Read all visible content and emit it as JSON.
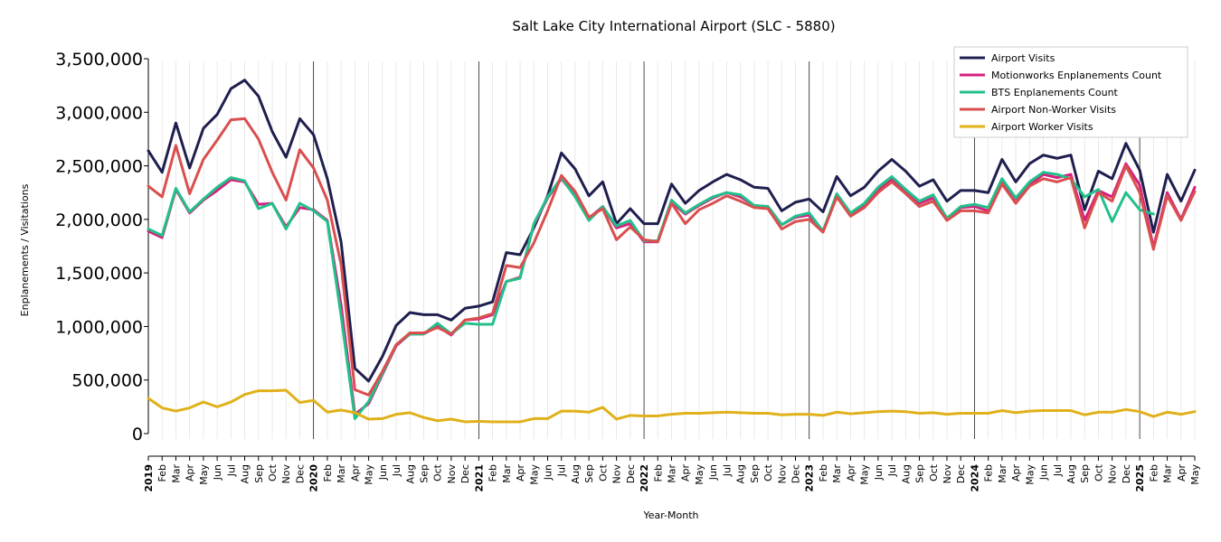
{
  "chart_data": {
    "type": "line",
    "title": "Salt Lake City International Airport (SLC - 5880)",
    "xlabel": "Year-Month",
    "ylabel": "Enplanements / Visitations",
    "ylim": [
      0,
      3500000
    ],
    "yticks": [
      0,
      500000,
      1000000,
      1500000,
      2000000,
      2500000,
      3000000,
      3500000
    ],
    "ytick_labels": [
      "0",
      "500,000",
      "1,000,000",
      "1,500,000",
      "2,000,000",
      "2,500,000",
      "3,000,000",
      "3,500,000"
    ],
    "x": [
      "2019-01",
      "2019-02",
      "2019-03",
      "2019-04",
      "2019-05",
      "2019-06",
      "2019-07",
      "2019-08",
      "2019-09",
      "2019-10",
      "2019-11",
      "2019-12",
      "2020-01",
      "2020-02",
      "2020-03",
      "2020-04",
      "2020-05",
      "2020-06",
      "2020-07",
      "2020-08",
      "2020-09",
      "2020-10",
      "2020-11",
      "2020-12",
      "2021-01",
      "2021-02",
      "2021-03",
      "2021-04",
      "2021-05",
      "2021-06",
      "2021-07",
      "2021-08",
      "2021-09",
      "2021-10",
      "2021-11",
      "2021-12",
      "2022-01",
      "2022-02",
      "2022-03",
      "2022-04",
      "2022-05",
      "2022-06",
      "2022-07",
      "2022-08",
      "2022-09",
      "2022-10",
      "2022-11",
      "2022-12",
      "2023-01",
      "2023-02",
      "2023-03",
      "2023-04",
      "2023-05",
      "2023-06",
      "2023-07",
      "2023-08",
      "2023-09",
      "2023-10",
      "2023-11",
      "2023-12",
      "2024-01",
      "2024-02",
      "2024-03",
      "2024-04",
      "2024-05",
      "2024-06",
      "2024-07",
      "2024-08",
      "2024-09",
      "2024-10",
      "2024-11",
      "2024-12",
      "2025-01",
      "2025-02",
      "2025-03",
      "2025-04",
      "2025-05"
    ],
    "x_tick_labels": [
      "2019",
      "Feb",
      "Mar",
      "Apr",
      "May",
      "Jun",
      "Jul",
      "Aug",
      "Sep",
      "Oct",
      "Nov",
      "Dec",
      "2020",
      "Feb",
      "Mar",
      "Apr",
      "May",
      "Jun",
      "Jul",
      "Aug",
      "Sep",
      "Oct",
      "Nov",
      "Dec",
      "2021",
      "Feb",
      "Mar",
      "Apr",
      "May",
      "Jun",
      "Jul",
      "Aug",
      "Sep",
      "Oct",
      "Nov",
      "Dec",
      "2022",
      "Feb",
      "Mar",
      "Apr",
      "May",
      "Jun",
      "Jul",
      "Aug",
      "Sep",
      "Oct",
      "Nov",
      "Dec",
      "2023",
      "Feb",
      "Mar",
      "Apr",
      "May",
      "Jun",
      "Jul",
      "Aug",
      "Sep",
      "Oct",
      "Nov",
      "Dec",
      "2024",
      "Feb",
      "Mar",
      "Apr",
      "May",
      "Jun",
      "Jul",
      "Aug",
      "Sep",
      "Oct",
      "Nov",
      "Dec",
      "2025",
      "Feb",
      "Mar",
      "Apr",
      "May"
    ],
    "grid": "vertical",
    "legend_position": "top-right",
    "series": [
      {
        "name": "Airport Visits",
        "color": "#1f1f4f",
        "values": [
          2640000,
          2440000,
          2900000,
          2480000,
          2850000,
          2980000,
          3220000,
          3300000,
          3150000,
          2820000,
          2580000,
          2940000,
          2790000,
          2380000,
          1790000,
          610000,
          490000,
          720000,
          1010000,
          1130000,
          1110000,
          1110000,
          1060000,
          1170000,
          1190000,
          1230000,
          1690000,
          1670000,
          1920000,
          2220000,
          2620000,
          2470000,
          2220000,
          2350000,
          1960000,
          2100000,
          1960000,
          1960000,
          2330000,
          2150000,
          2270000,
          2350000,
          2420000,
          2370000,
          2300000,
          2290000,
          2080000,
          2160000,
          2190000,
          2070000,
          2400000,
          2220000,
          2300000,
          2450000,
          2560000,
          2450000,
          2310000,
          2370000,
          2170000,
          2270000,
          2270000,
          2250000,
          2560000,
          2350000,
          2520000,
          2600000,
          2570000,
          2600000,
          2090000,
          2450000,
          2380000,
          2710000,
          2460000,
          1880000,
          2420000,
          2170000,
          2460000
        ]
      },
      {
        "name": "Motionworks Enplanements Count",
        "color": "#d6207e",
        "values": [
          1890000,
          1830000,
          2280000,
          2060000,
          2180000,
          2270000,
          2370000,
          2350000,
          2140000,
          2150000,
          1930000,
          2110000,
          2090000,
          1990000,
          1200000,
          180000,
          280000,
          550000,
          820000,
          930000,
          930000,
          1000000,
          920000,
          1060000,
          1070000,
          1110000,
          1420000,
          1460000,
          1950000,
          2200000,
          2380000,
          2220000,
          2010000,
          2120000,
          1920000,
          1960000,
          1790000,
          1790000,
          2160000,
          2050000,
          2130000,
          2200000,
          2250000,
          2210000,
          2130000,
          2120000,
          1950000,
          2020000,
          2040000,
          1890000,
          2220000,
          2050000,
          2140000,
          2280000,
          2370000,
          2270000,
          2150000,
          2200000,
          2010000,
          2110000,
          2120000,
          2080000,
          2350000,
          2190000,
          2320000,
          2420000,
          2390000,
          2420000,
          1990000,
          2270000,
          2210000,
          2520000,
          2320000,
          1740000,
          2250000,
          2000000,
          2300000
        ]
      },
      {
        "name": "BTS Enplanements Count",
        "color": "#22c08a",
        "values": [
          1910000,
          1850000,
          2290000,
          2070000,
          2190000,
          2300000,
          2390000,
          2360000,
          2100000,
          2150000,
          1910000,
          2150000,
          2080000,
          1980000,
          1100000,
          140000,
          300000,
          560000,
          830000,
          930000,
          930000,
          1030000,
          930000,
          1030000,
          1020000,
          1020000,
          1420000,
          1450000,
          1960000,
          2210000,
          2390000,
          2210000,
          1990000,
          2120000,
          1940000,
          1990000,
          1800000,
          1800000,
          2180000,
          2060000,
          2140000,
          2210000,
          2250000,
          2230000,
          2130000,
          2120000,
          1950000,
          2030000,
          2060000,
          1890000,
          2240000,
          2060000,
          2150000,
          2300000,
          2400000,
          2280000,
          2170000,
          2230000,
          2010000,
          2120000,
          2140000,
          2110000,
          2380000,
          2200000,
          2350000,
          2440000,
          2420000,
          2380000,
          2210000,
          2280000,
          1980000,
          2250000,
          2090000,
          2050000,
          null,
          null,
          null
        ]
      },
      {
        "name": "Airport Non-Worker Visits",
        "color": "#d94f4f",
        "values": [
          2310000,
          2210000,
          2690000,
          2240000,
          2560000,
          2740000,
          2930000,
          2940000,
          2750000,
          2440000,
          2180000,
          2650000,
          2480000,
          2180000,
          1580000,
          410000,
          360000,
          580000,
          830000,
          940000,
          940000,
          990000,
          930000,
          1060000,
          1080000,
          1120000,
          1570000,
          1550000,
          1780000,
          2080000,
          2410000,
          2260000,
          2020000,
          2100000,
          1810000,
          1930000,
          1810000,
          1790000,
          2150000,
          1960000,
          2090000,
          2150000,
          2220000,
          2170000,
          2110000,
          2100000,
          1910000,
          1980000,
          2000000,
          1880000,
          2210000,
          2030000,
          2110000,
          2250000,
          2350000,
          2240000,
          2120000,
          2170000,
          1990000,
          2080000,
          2080000,
          2060000,
          2330000,
          2150000,
          2310000,
          2380000,
          2350000,
          2390000,
          1920000,
          2250000,
          2170000,
          2500000,
          2250000,
          1720000,
          2220000,
          1990000,
          2260000
        ]
      },
      {
        "name": "Airport Worker Visits",
        "color": "#e0b11a",
        "values": [
          330000,
          240000,
          210000,
          240000,
          295000,
          250000,
          295000,
          365000,
          400000,
          400000,
          405000,
          290000,
          310000,
          200000,
          220000,
          195000,
          135000,
          140000,
          180000,
          195000,
          150000,
          120000,
          135000,
          110000,
          115000,
          110000,
          110000,
          110000,
          140000,
          140000,
          210000,
          210000,
          200000,
          245000,
          135000,
          170000,
          165000,
          165000,
          180000,
          190000,
          190000,
          195000,
          200000,
          195000,
          190000,
          190000,
          175000,
          180000,
          180000,
          170000,
          200000,
          185000,
          195000,
          205000,
          210000,
          205000,
          190000,
          195000,
          180000,
          190000,
          190000,
          190000,
          215000,
          195000,
          210000,
          215000,
          215000,
          215000,
          175000,
          200000,
          200000,
          225000,
          205000,
          160000,
          200000,
          180000,
          205000
        ]
      }
    ]
  }
}
